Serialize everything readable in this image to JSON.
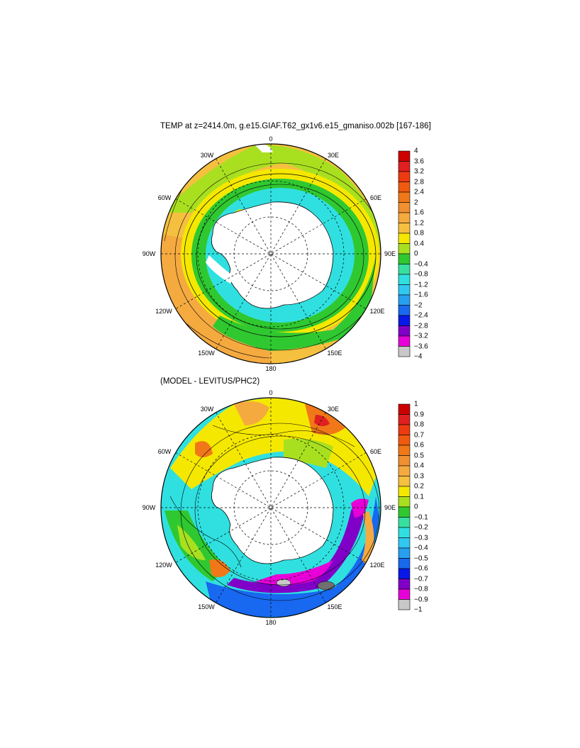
{
  "panels": [
    {
      "title": "TEMP at z=2414.0m, g.e15.GIAF.T62_gx1v6.e15_gmaniso.002b [167-186]",
      "lon_labels": {
        "l0": "0",
        "l30e": "30E",
        "l60e": "60E",
        "l90e": "90E",
        "l120e": "120E",
        "l150e": "150E",
        "l180": "180",
        "l150w": "150W",
        "l120w": "120W",
        "l90w": "90W",
        "l60w": "60W",
        "l30w": "30W"
      },
      "colorbar": {
        "labels": [
          "4",
          "3.6",
          "3.2",
          "2.8",
          "2.4",
          "2",
          "1.6",
          "1.2",
          "0.8",
          "0.4",
          "0",
          "−0.4",
          "−0.8",
          "−1.2",
          "−1.6",
          "−2",
          "−2.4",
          "−2.8",
          "−3.2",
          "−3.6",
          "−4"
        ],
        "colors": [
          "#cc0000",
          "#e02020",
          "#ee3a10",
          "#f05a10",
          "#f07818",
          "#f09030",
          "#f5aa40",
          "#f5c040",
          "#f5e800",
          "#a8e020",
          "#30c830",
          "#38e0a0",
          "#30e0e0",
          "#30c8f0",
          "#28a0f0",
          "#1868f0",
          "#0818e8",
          "#8000c8",
          "#e800d8",
          "#c8c8c8",
          "#707070"
        ]
      }
    },
    {
      "title": "(MODEL - LEVITUS/PHC2)",
      "lon_labels": {
        "l0": "0",
        "l30e": "30E",
        "l60e": "60E",
        "l90e": "90E",
        "l120e": "120E",
        "l150e": "150E",
        "l180": "180",
        "l150w": "150W",
        "l120w": "120W",
        "l90w": "90W",
        "l60w": "60W",
        "l30w": "30W"
      },
      "colorbar": {
        "labels": [
          "1",
          "0.9",
          "0.8",
          "0.7",
          "0.6",
          "0.5",
          "0.4",
          "0.3",
          "0.2",
          "0.1",
          "0",
          "−0.1",
          "−0.2",
          "−0.3",
          "−0.4",
          "−0.5",
          "−0.6",
          "−0.7",
          "−0.8",
          "−0.9",
          "−1"
        ],
        "colors": [
          "#cc0000",
          "#e02020",
          "#ee3a10",
          "#f05a10",
          "#f07818",
          "#f09030",
          "#f5aa40",
          "#f5c040",
          "#f5e800",
          "#a8e020",
          "#30c830",
          "#38e0a0",
          "#30e0e0",
          "#30c8f0",
          "#28a0f0",
          "#1868f0",
          "#0818e8",
          "#8000c8",
          "#e800d8",
          "#c8c8c8",
          "#707070"
        ]
      }
    }
  ]
}
